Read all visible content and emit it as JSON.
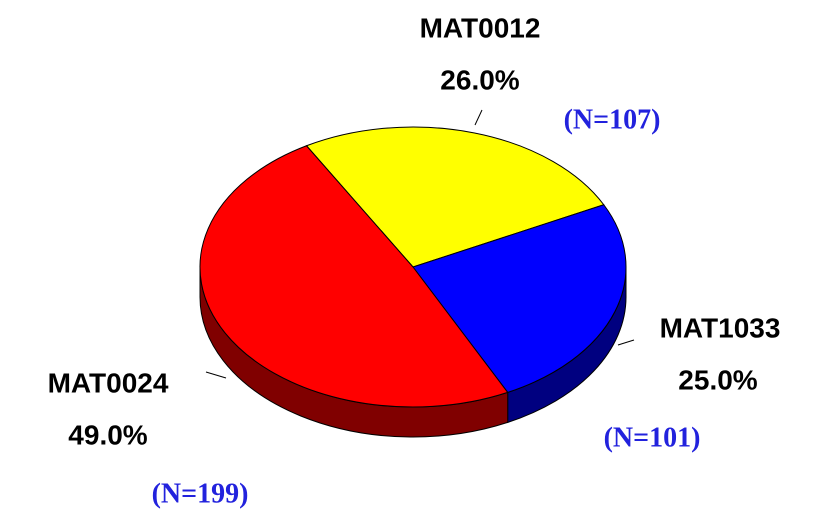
{
  "chart_data": {
    "type": "pie",
    "categories": [
      "MAT0012",
      "MAT1033",
      "MAT0024"
    ],
    "values": [
      26,
      25,
      49
    ],
    "value_labels": [
      "26.0%",
      "25.0%",
      "49.0%"
    ],
    "count_labels": [
      "(N=107)",
      "(N=101)",
      "(N=199)"
    ],
    "colors": [
      "#ffff00",
      "#0000ff",
      "#ff0000"
    ],
    "side_colors": [
      "#808000",
      "#000080",
      "#800000"
    ]
  }
}
